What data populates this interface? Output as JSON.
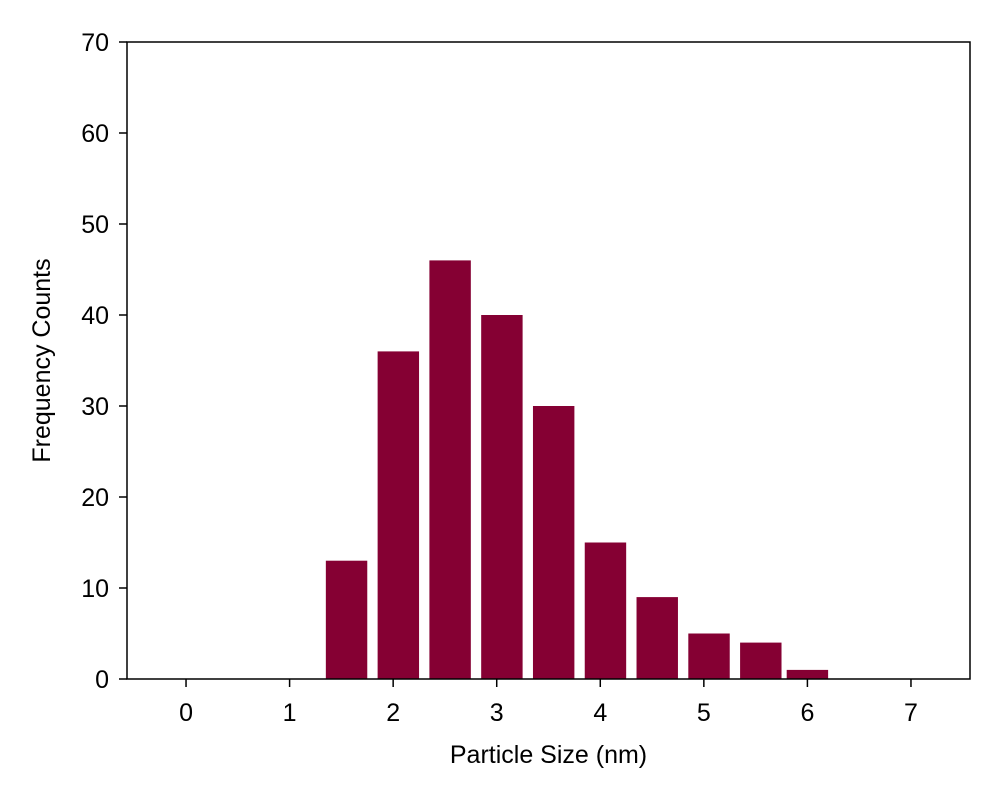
{
  "chart_data": {
    "type": "bar",
    "x": [
      1.55,
      2.05,
      2.55,
      3.05,
      3.55,
      4.05,
      4.55,
      5.05,
      5.55,
      6.0
    ],
    "values": [
      13,
      36,
      46,
      40,
      30,
      15,
      9,
      5,
      4,
      1
    ],
    "bar_width": 0.4,
    "xlabel": "Particle Size (nm)",
    "ylabel": "Frequency Counts",
    "xlim": [
      -0.57,
      7.57
    ],
    "ylim": [
      0,
      70
    ],
    "xticks": [
      0,
      1,
      2,
      3,
      4,
      5,
      6,
      7
    ],
    "yticks": [
      0,
      10,
      20,
      30,
      40,
      50,
      60,
      70
    ],
    "grid": false,
    "bar_color": "#850033"
  }
}
